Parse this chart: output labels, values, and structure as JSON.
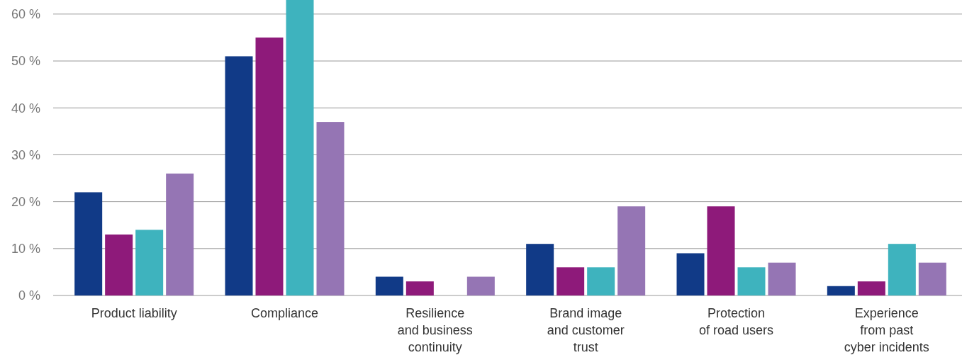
{
  "chart_data": {
    "type": "bar",
    "categories": [
      "Product liability",
      "Compliance",
      "Resilience\nand business\ncontinuity",
      "Brand image\nand customer\ntrust",
      "Protection\nof road users",
      "Experience\nfrom past\ncyber incidents"
    ],
    "series": [
      {
        "color": "#113a87",
        "values": [
          22,
          51,
          4,
          11,
          9,
          2
        ]
      },
      {
        "color": "#8e1a7a",
        "values": [
          13,
          55,
          3,
          6,
          19,
          3
        ]
      },
      {
        "color": "#3eb3be",
        "values": [
          14,
          63,
          0,
          6,
          6,
          11
        ]
      },
      {
        "color": "#9575b4",
        "values": [
          26,
          37,
          4,
          19,
          7,
          7
        ]
      }
    ],
    "ylim": [
      0,
      63
    ],
    "yticks": [
      {
        "value": 0,
        "label": "0 %"
      },
      {
        "value": 10,
        "label": "10 %"
      },
      {
        "value": 20,
        "label": "20 %"
      },
      {
        "value": 30,
        "label": "30 %"
      },
      {
        "value": 40,
        "label": "40 %"
      },
      {
        "value": 50,
        "label": "50 %"
      },
      {
        "value": 60,
        "label": "60 %"
      }
    ],
    "grid": "y"
  }
}
